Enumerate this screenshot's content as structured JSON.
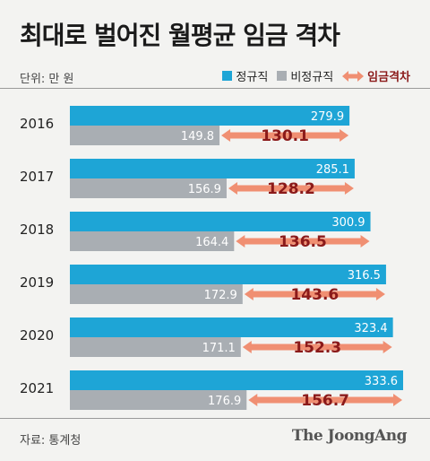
{
  "chart_data": {
    "type": "bar",
    "orientation": "horizontal",
    "title": "최대로 벌어진 월평균 임금 격차",
    "unit_label": "단위: 만 원",
    "categories": [
      "2016",
      "2017",
      "2018",
      "2019",
      "2020",
      "2021"
    ],
    "series": [
      {
        "name": "정규직",
        "color": "#1ea5d6",
        "values": [
          279.9,
          285.1,
          300.9,
          316.5,
          323.4,
          333.6
        ],
        "labels": [
          "279.9",
          "285.1",
          "300.9",
          "316.5",
          "323.4",
          "333.6"
        ]
      },
      {
        "name": "비정규직",
        "color": "#a9aeb3",
        "values": [
          149.8,
          156.9,
          164.4,
          172.9,
          171.1,
          176.9
        ],
        "labels": [
          "149.8",
          "156.9",
          "164.4",
          "172.9",
          "171.1",
          "176.9"
        ]
      }
    ],
    "gap": {
      "name": "임금격차",
      "color": "#f08f72",
      "text_color": "#8b1a1a",
      "values": [
        130.1,
        128.2,
        136.5,
        143.6,
        152.3,
        156.7
      ],
      "labels": [
        "130.1",
        "128.2",
        "136.5",
        "143.6",
        "152.3",
        "156.7"
      ]
    },
    "xlim": [
      0,
      333.6
    ],
    "legend_position": "top-right",
    "grid": false
  },
  "source": "자료: 통계청",
  "logo": "The JoongAng"
}
